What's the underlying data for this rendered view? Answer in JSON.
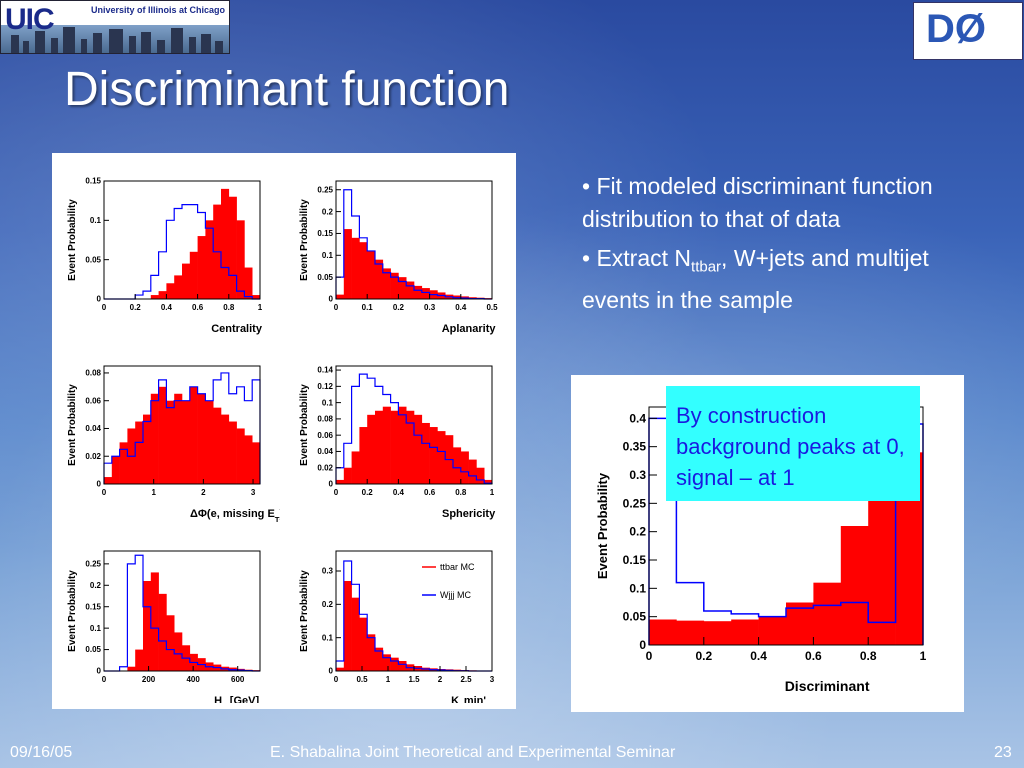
{
  "slide": {
    "title": "Discriminant function",
    "bullets": [
      "Fit modeled discriminant function distribution to that of data",
      {
        "pre": "Extract N",
        "sub": "ttbar",
        "post": ", W+jets and multijet events in the sample"
      }
    ],
    "callout": "By construction background peaks at 0, signal – at 1",
    "footer": {
      "date": "09/16/05",
      "center": "E. Shabalina Joint Theoretical and Experimental Seminar",
      "page": "23"
    },
    "uic_logo": {
      "text": "UIC",
      "subtitle": "University of Illinois at Chicago"
    },
    "d0_logo": {
      "text": "DØ"
    }
  },
  "colors": {
    "signal": "#ff0000",
    "background": "#0000ff",
    "callout": "#33ffff",
    "callout_text": "#1a1ae0"
  },
  "chart_data": [
    {
      "type": "bar",
      "ylabel": "Event Probability",
      "xlabel": "Centrality",
      "xlim": [
        0,
        1
      ],
      "ylim": [
        0,
        0.15
      ],
      "xticks": [
        0,
        0.2,
        0.4,
        0.6,
        0.8,
        1
      ],
      "xticklabels": [
        "0",
        "0.2",
        "0.4",
        "0.6",
        "0.8",
        "1"
      ],
      "yticks": [
        0,
        0.05,
        0.1,
        0.15
      ],
      "yticklabels": [
        "0",
        "0.05",
        "0.1",
        "0.15"
      ],
      "series": [
        {
          "name": "ttbar MC",
          "style": "filled",
          "values": [
            0,
            0,
            0,
            0,
            0,
            0,
            0.005,
            0.01,
            0.02,
            0.03,
            0.045,
            0.06,
            0.08,
            0.1,
            0.12,
            0.14,
            0.13,
            0.1,
            0.04,
            0.005
          ]
        },
        {
          "name": "Wjjj MC",
          "style": "outline",
          "values": [
            0,
            0,
            0,
            0,
            0.005,
            0.01,
            0.03,
            0.06,
            0.1,
            0.115,
            0.12,
            0.12,
            0.11,
            0.09,
            0.06,
            0.04,
            0.03,
            0.01,
            0.003,
            0
          ]
        }
      ]
    },
    {
      "type": "bar",
      "ylabel": "Event Probability",
      "xlabel": "Aplanarity",
      "xlim": [
        0,
        0.5
      ],
      "ylim": [
        0,
        0.27
      ],
      "xticks": [
        0,
        0.1,
        0.2,
        0.3,
        0.4,
        0.5
      ],
      "xticklabels": [
        "0",
        "0.1",
        "0.2",
        "0.3",
        "0.4",
        "0.5"
      ],
      "yticks": [
        0,
        0.05,
        0.1,
        0.15,
        0.2,
        0.25
      ],
      "yticklabels": [
        "0",
        "0.05",
        "0.1",
        "0.15",
        "0.2",
        "0.25"
      ],
      "series": [
        {
          "name": "ttbar MC",
          "style": "filled",
          "values": [
            0.01,
            0.16,
            0.14,
            0.13,
            0.11,
            0.09,
            0.07,
            0.06,
            0.05,
            0.04,
            0.03,
            0.025,
            0.02,
            0.015,
            0.01,
            0.008,
            0.006,
            0.004,
            0.003,
            0.002
          ]
        },
        {
          "name": "Wjjj MC",
          "style": "outline",
          "values": [
            0.05,
            0.25,
            0.19,
            0.14,
            0.11,
            0.08,
            0.06,
            0.05,
            0.04,
            0.03,
            0.02,
            0.015,
            0.01,
            0.008,
            0.005,
            0.003,
            0.002,
            0.001,
            0.001,
            0
          ]
        }
      ]
    },
    {
      "type": "bar",
      "ylabel": "Event Probability",
      "xlabel": "ΔΦ(e, missing E_T)",
      "xlim": [
        0,
        3.14
      ],
      "ylim": [
        0,
        0.085
      ],
      "xticks": [
        0,
        1,
        2,
        3
      ],
      "xticklabels": [
        "0",
        "1",
        "2",
        "3"
      ],
      "yticks": [
        0,
        0.02,
        0.04,
        0.06,
        0.08
      ],
      "yticklabels": [
        "0",
        "0.02",
        "0.04",
        "0.06",
        "0.08"
      ],
      "series": [
        {
          "name": "ttbar MC",
          "style": "filled",
          "values": [
            0.005,
            0.02,
            0.03,
            0.04,
            0.045,
            0.05,
            0.065,
            0.07,
            0.06,
            0.065,
            0.06,
            0.07,
            0.065,
            0.06,
            0.055,
            0.05,
            0.045,
            0.04,
            0.035,
            0.03
          ]
        },
        {
          "name": "Wjjj MC",
          "style": "outline",
          "values": [
            0.015,
            0.02,
            0.025,
            0.02,
            0.03,
            0.045,
            0.06,
            0.075,
            0.055,
            0.06,
            0.06,
            0.07,
            0.065,
            0.06,
            0.075,
            0.08,
            0.065,
            0.07,
            0.06,
            0.075
          ]
        }
      ]
    },
    {
      "type": "bar",
      "ylabel": "Event Probability",
      "xlabel": "Sphericity",
      "xlim": [
        0,
        1
      ],
      "ylim": [
        0,
        0.145
      ],
      "xticks": [
        0,
        0.2,
        0.4,
        0.6,
        0.8,
        1
      ],
      "xticklabels": [
        "0",
        "0.2",
        "0.4",
        "0.6",
        "0.8",
        "1"
      ],
      "yticks": [
        0,
        0.02,
        0.04,
        0.06,
        0.08,
        0.1,
        0.12,
        0.14
      ],
      "yticklabels": [
        "0",
        "0.02",
        "0.04",
        "0.06",
        "0.08",
        "0.1",
        "0.12",
        "0.14"
      ],
      "series": [
        {
          "name": "ttbar MC",
          "style": "filled",
          "values": [
            0.005,
            0.02,
            0.04,
            0.07,
            0.085,
            0.09,
            0.095,
            0.09,
            0.095,
            0.09,
            0.085,
            0.075,
            0.07,
            0.065,
            0.06,
            0.045,
            0.04,
            0.03,
            0.02,
            0.005
          ]
        },
        {
          "name": "Wjjj MC",
          "style": "outline",
          "values": [
            0.02,
            0.05,
            0.12,
            0.135,
            0.13,
            0.12,
            0.11,
            0.1,
            0.085,
            0.075,
            0.06,
            0.05,
            0.045,
            0.04,
            0.03,
            0.02,
            0.015,
            0.01,
            0.005,
            0.001
          ]
        }
      ]
    },
    {
      "type": "bar",
      "ylabel": "Event Probability",
      "xlabel": "H_T [GeV]",
      "xlim": [
        0,
        700
      ],
      "ylim": [
        0,
        0.28
      ],
      "xticks": [
        0,
        200,
        400,
        600
      ],
      "xticklabels": [
        "0",
        "200",
        "400",
        "600"
      ],
      "yticks": [
        0,
        0.05,
        0.1,
        0.15,
        0.2,
        0.25
      ],
      "yticklabels": [
        "0",
        "0.05",
        "0.1",
        "0.15",
        "0.2",
        "0.25"
      ],
      "series": [
        {
          "name": "ttbar MC",
          "style": "filled",
          "values": [
            0,
            0,
            0,
            0.01,
            0.05,
            0.21,
            0.23,
            0.18,
            0.13,
            0.09,
            0.06,
            0.04,
            0.03,
            0.02,
            0.015,
            0.01,
            0.008,
            0.005,
            0.003,
            0.002
          ]
        },
        {
          "name": "Wjjj MC",
          "style": "outline",
          "values": [
            0,
            0,
            0.01,
            0.25,
            0.27,
            0.15,
            0.1,
            0.07,
            0.05,
            0.04,
            0.03,
            0.02,
            0.015,
            0.01,
            0.008,
            0.005,
            0.003,
            0.002,
            0.001,
            0
          ]
        }
      ]
    },
    {
      "type": "bar",
      "ylabel": "Event Probability",
      "xlabel": "K_Tmin'",
      "xlim": [
        0,
        3
      ],
      "ylim": [
        0,
        0.36
      ],
      "xticks": [
        0,
        0.5,
        1,
        1.5,
        2,
        2.5,
        3
      ],
      "xticklabels": [
        "0",
        "0.5",
        "1",
        "1.5",
        "2",
        "2.5",
        "3"
      ],
      "yticks": [
        0,
        0.1,
        0.2,
        0.3
      ],
      "yticklabels": [
        "0",
        "0.1",
        "0.2",
        "0.3"
      ],
      "legend": {
        "position": "top-right"
      },
      "series": [
        {
          "name": "ttbar MC",
          "style": "filled",
          "values": [
            0.01,
            0.27,
            0.22,
            0.16,
            0.11,
            0.07,
            0.05,
            0.04,
            0.03,
            0.02,
            0.015,
            0.01,
            0.008,
            0.006,
            0.005,
            0.004,
            0.003,
            0.002,
            0.001,
            0.001
          ]
        },
        {
          "name": "Wjjj MC",
          "style": "outline",
          "values": [
            0.03,
            0.33,
            0.26,
            0.17,
            0.1,
            0.06,
            0.04,
            0.03,
            0.02,
            0.01,
            0.008,
            0.006,
            0.004,
            0.003,
            0.002,
            0.001,
            0.001,
            0,
            0,
            0
          ]
        }
      ]
    },
    {
      "type": "bar",
      "ylabel": "Event Probability",
      "xlabel": "Discriminant",
      "xlim": [
        0,
        1
      ],
      "ylim": [
        0,
        0.42
      ],
      "xticks": [
        0,
        0.2,
        0.4,
        0.6,
        0.8,
        1
      ],
      "xticklabels": [
        "0",
        "0.2",
        "0.4",
        "0.6",
        "0.8",
        "1"
      ],
      "yticks": [
        0,
        0.05,
        0.1,
        0.15,
        0.2,
        0.25,
        0.3,
        0.35,
        0.4
      ],
      "yticklabels": [
        "0",
        "0.05",
        "0.1",
        "0.15",
        "0.2",
        "0.25",
        "0.3",
        "0.35",
        "0.4"
      ],
      "series": [
        {
          "name": "ttbar MC",
          "style": "filled",
          "values": [
            0.045,
            0.043,
            0.042,
            0.045,
            0.05,
            0.075,
            0.11,
            0.21,
            0.26,
            0.34
          ]
        },
        {
          "name": "Wjjj MC",
          "style": "outline",
          "values": [
            0.4,
            0.11,
            0.06,
            0.055,
            0.05,
            0.065,
            0.07,
            0.075,
            0.04,
            0.39
          ]
        }
      ]
    }
  ]
}
